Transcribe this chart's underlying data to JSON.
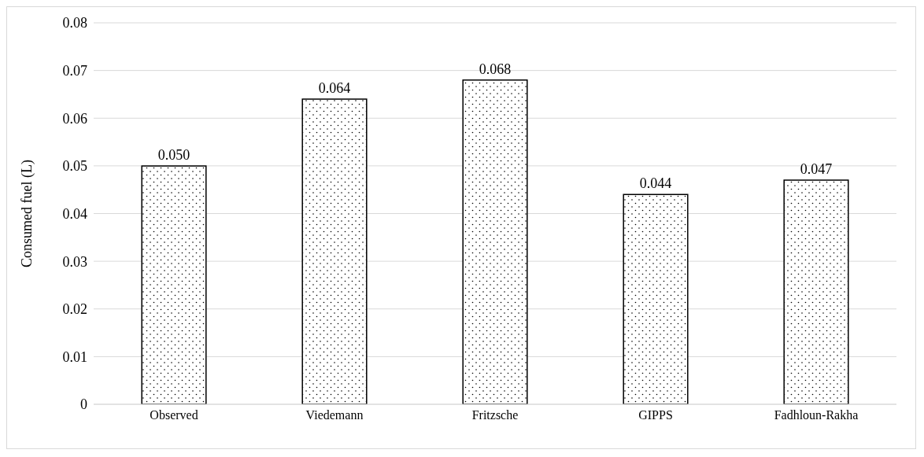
{
  "chart_data": {
    "type": "bar",
    "ylabel": "Consumed fuel (L)",
    "categories": [
      "Observed",
      "Viedemann",
      "Fritzsche",
      "GIPPS",
      "Fadhloun-Rakha"
    ],
    "values": [
      0.05,
      0.064,
      0.068,
      0.044,
      0.047
    ],
    "value_labels": [
      "0.050",
      "0.064",
      "0.068",
      "0.044",
      "0.047"
    ],
    "color": "#000000",
    "ylim": [
      0,
      0.08
    ],
    "yticks": [
      0,
      0.01,
      0.02,
      0.03,
      0.04,
      0.05,
      0.06,
      0.07,
      0.08
    ],
    "grid": "y",
    "legend": false
  }
}
